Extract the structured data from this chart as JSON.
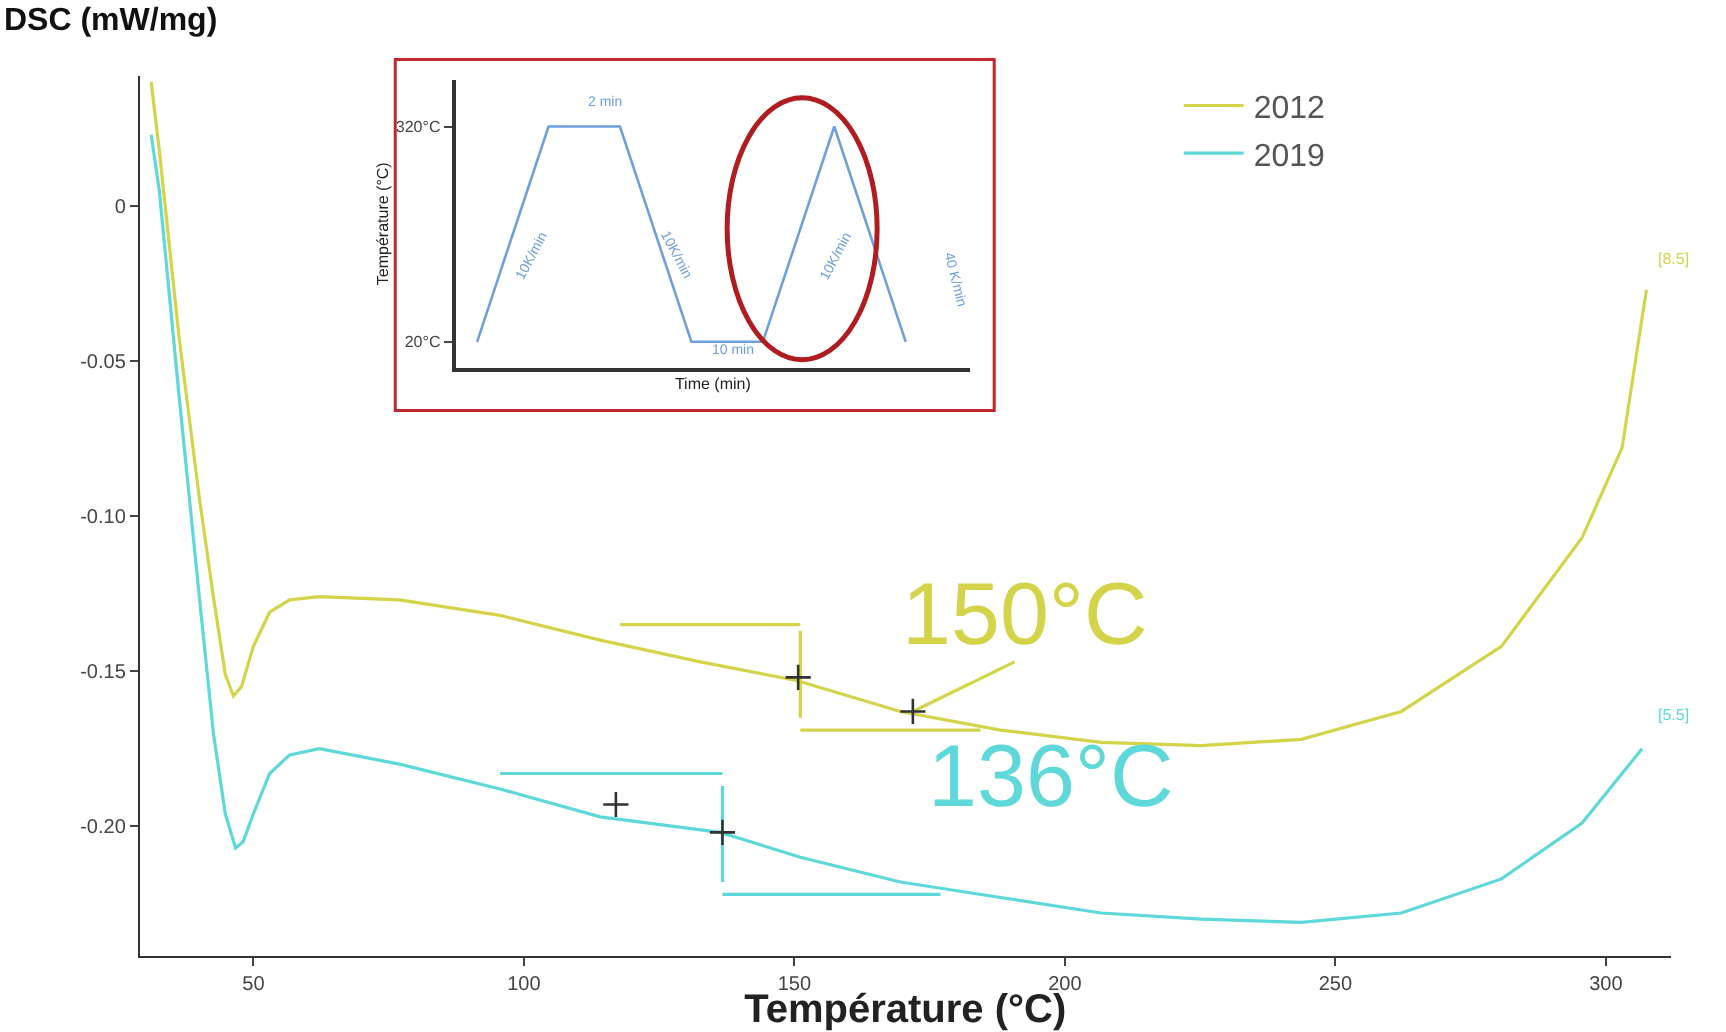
{
  "chart_data": [
    {
      "type": "line",
      "xlabel": "Température (°C)",
      "ylabel": "DSC (mW/mg)",
      "xlim": [
        29,
        312
      ],
      "ylim": [
        -0.242,
        0.042
      ],
      "xticks": [
        50,
        100,
        150,
        200,
        250,
        300
      ],
      "yticks": [
        0,
        {
          "value": -0.05,
          "label": "-0.05"
        },
        {
          "value": -0.1,
          "label": "-0.10"
        },
        {
          "value": -0.15,
          "label": "-0.15"
        },
        {
          "value": -0.2,
          "label": "-0.20"
        }
      ],
      "legend": "top right",
      "marker": "none",
      "line_style": "solid",
      "series": [
        {
          "name": "2012",
          "color": "#d4d44a",
          "x": [
            31.1,
            32.6,
            36.3,
            40.0,
            42.6,
            44.8,
            46.3,
            47.8,
            50,
            53,
            56.7,
            62.2,
            77,
            95.6,
            114.1,
            132.6,
            150.4,
            169.6,
            188.1,
            206.7,
            225.2,
            243.7,
            262.2,
            280.7,
            295.6,
            303,
            307.5
          ],
          "values": [
            0.04,
            0.018,
            -0.043,
            -0.094,
            -0.126,
            -0.151,
            -0.158,
            -0.155,
            -0.142,
            -0.131,
            -0.127,
            -0.126,
            -0.127,
            -0.132,
            -0.14,
            -0.147,
            -0.153,
            -0.163,
            -0.169,
            -0.173,
            -0.174,
            -0.172,
            -0.163,
            -0.142,
            -0.107,
            -0.078,
            -0.027
          ]
        },
        {
          "name": "2019",
          "color": "#5ed8d8",
          "x": [
            31.1,
            32.6,
            36.3,
            40.0,
            42.6,
            44.8,
            46.7,
            48.1,
            50,
            53,
            56.7,
            62.2,
            77,
            95.6,
            114.1,
            136.3,
            151.1,
            169.6,
            188.1,
            206.7,
            225.2,
            243.7,
            262.2,
            280.7,
            295.6,
            306.7
          ],
          "values": [
            0.023,
            0.005,
            -0.062,
            -0.126,
            -0.17,
            -0.196,
            -0.207,
            -0.205,
            -0.196,
            -0.183,
            -0.177,
            -0.175,
            -0.18,
            -0.188,
            -0.197,
            -0.202,
            -0.21,
            -0.218,
            -0.223,
            -0.228,
            -0.23,
            -0.231,
            -0.228,
            -0.217,
            -0.199,
            -0.175
          ]
        },
        {
          "color": "#d4d44a",
          "x": [
            117.8,
            151.1
          ],
          "values": [
            -0.135,
            -0.135
          ]
        },
        {
          "color": "#d4d44a",
          "x": [
            151.1,
            184.4
          ],
          "values": [
            -0.169,
            -0.169
          ]
        },
        {
          "color": "#d4d44a",
          "x": [
            171.9,
            190.7
          ],
          "values": [
            -0.163,
            -0.147
          ]
        },
        {
          "color": "#d4d44a",
          "x": [
            151.1,
            151.1
          ],
          "values": [
            -0.137,
            -0.165
          ]
        },
        {
          "color": "#5ed8d8",
          "x": [
            95.6,
            136.7
          ],
          "values": [
            -0.183,
            -0.183
          ]
        },
        {
          "color": "#5ed8d8",
          "x": [
            136.7,
            177
          ],
          "values": [
            -0.222,
            -0.222
          ]
        },
        {
          "color": "#5ed8d8",
          "x": [
            136.7,
            136.7
          ],
          "values": [
            -0.187,
            -0.218
          ]
        },
        {
          "type": "scatter",
          "marker": "cross",
          "color": "#333333",
          "x": [
            150.7,
            171.9,
            117,
            136.7
          ],
          "values": [
            -0.152,
            -0.163,
            -0.193,
            -0.202
          ]
        }
      ],
      "annotations": [
        "150°C",
        "136°C",
        "[8.5]",
        "[5.5]"
      ]
    },
    {
      "type": "line",
      "xlabel": "Time (min)",
      "ylabel": "Température (°C)",
      "categories": [
        null,
        null,
        null,
        null,
        null,
        null,
        null
      ],
      "ylim": [
        -16,
        385
      ],
      "yticks": [
        {
          "value": 20,
          "label": "20°C"
        },
        {
          "value": 320,
          "label": "320°C"
        }
      ],
      "tick_labels": "y",
      "legend": false,
      "series": [
        {
          "color": "#6fa0dc",
          "values": [
            20,
            320,
            320,
            20,
            20,
            320,
            20
          ]
        }
      ],
      "annotations": [
        "2 min",
        "10K/min",
        "10K/min",
        "10 min",
        "10K/min",
        "40 K/min"
      ]
    }
  ]
}
